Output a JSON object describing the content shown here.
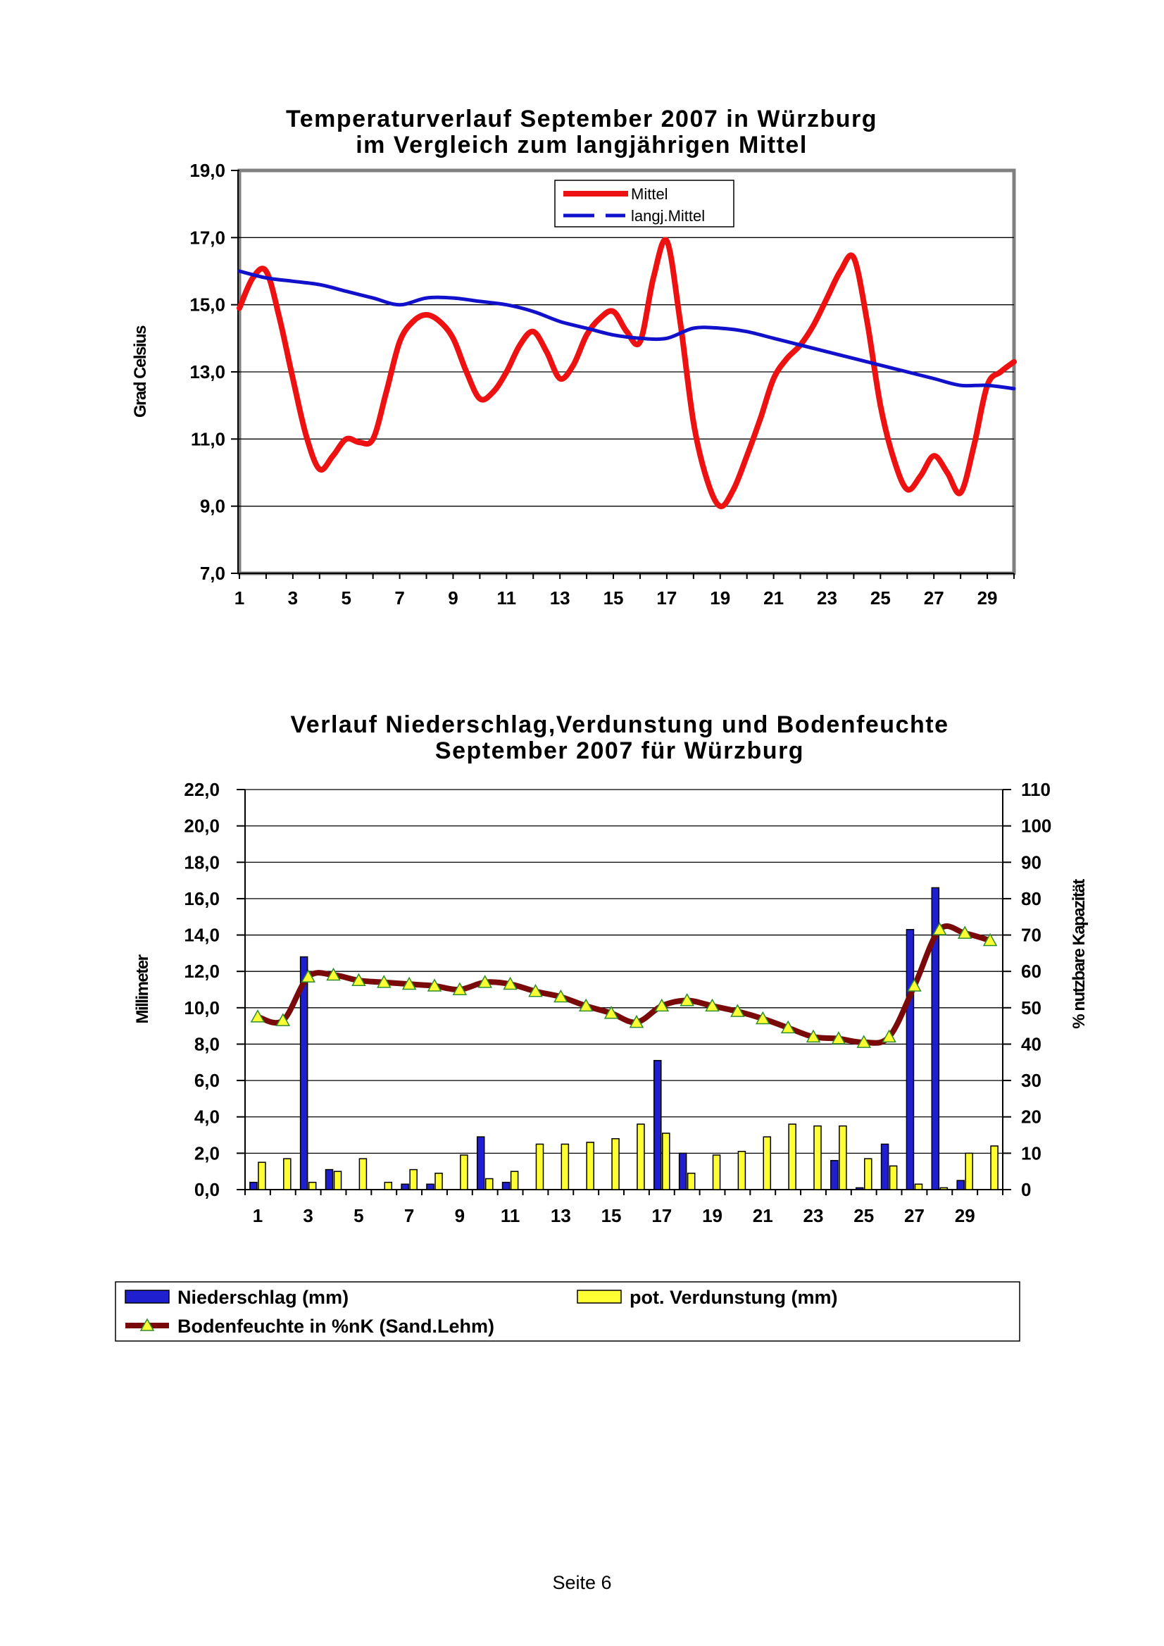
{
  "chart_data": [
    {
      "type": "line",
      "title": [
        "Temperaturverlauf September 2007 in Würzburg",
        "im Vergleich zum langjährigen Mittel"
      ],
      "ylabel": "Grad Celsius",
      "xlabel": "",
      "ylim": [
        7.0,
        19.0
      ],
      "yticks": [
        "7,0",
        "9,0",
        "11,0",
        "13,0",
        "15,0",
        "17,0",
        "19,0"
      ],
      "xlim": [
        1,
        30
      ],
      "xticks": [
        "1",
        "3",
        "5",
        "7",
        "9",
        "11",
        "13",
        "15",
        "17",
        "19",
        "21",
        "23",
        "25",
        "27",
        "29"
      ],
      "grid": true,
      "legend_position": "top-center",
      "series": [
        {
          "name": "Mittel",
          "color": "#ee1111",
          "x": [
            1,
            1.5,
            2,
            2.5,
            3,
            3.5,
            4,
            4.5,
            5,
            5.5,
            6,
            6.5,
            7,
            7.5,
            8,
            8.5,
            9,
            9.5,
            10,
            10.5,
            11,
            11.5,
            12,
            12.5,
            13,
            13.5,
            14,
            14.5,
            15,
            15.5,
            16,
            16.5,
            17,
            17.5,
            18,
            18.5,
            19,
            19.5,
            20,
            20.5,
            21,
            21.5,
            22,
            22.5,
            23,
            23.5,
            24,
            24.5,
            25,
            25.5,
            26,
            26.5,
            27,
            27.5,
            28,
            28.5,
            29,
            29.5,
            30
          ],
          "values": [
            14.9,
            15.8,
            16.0,
            14.6,
            12.8,
            11.1,
            10.1,
            10.5,
            11.0,
            10.9,
            11.0,
            12.4,
            13.9,
            14.5,
            14.7,
            14.5,
            14.0,
            13.0,
            12.2,
            12.4,
            13.0,
            13.8,
            14.2,
            13.6,
            12.8,
            13.2,
            14.1,
            14.6,
            14.8,
            14.2,
            13.9,
            15.8,
            16.9,
            14.5,
            11.5,
            9.8,
            9.0,
            9.5,
            10.5,
            11.6,
            12.8,
            13.4,
            13.8,
            14.4,
            15.2,
            16.0,
            16.4,
            14.5,
            12.0,
            10.4,
            9.5,
            9.9,
            10.5,
            10.0,
            9.4,
            10.8,
            12.6,
            13.0,
            13.3
          ]
        },
        {
          "name": "langj.Mittel",
          "color": "#1111cc",
          "x": [
            1,
            2,
            3,
            4,
            5,
            6,
            7,
            8,
            9,
            10,
            11,
            12,
            13,
            14,
            15,
            16,
            17,
            18,
            19,
            20,
            21,
            22,
            23,
            24,
            25,
            26,
            27,
            28,
            29,
            30
          ],
          "values": [
            16.0,
            15.8,
            15.7,
            15.6,
            15.4,
            15.2,
            15.0,
            15.2,
            15.2,
            15.1,
            15.0,
            14.8,
            14.5,
            14.3,
            14.1,
            14.0,
            14.0,
            14.3,
            14.3,
            14.2,
            14.0,
            13.8,
            13.6,
            13.4,
            13.2,
            13.0,
            12.8,
            12.6,
            12.6,
            12.5
          ]
        }
      ]
    },
    {
      "type": "bar",
      "title": [
        "Verlauf Niederschlag,Verdunstung und Bodenfeuchte",
        "September 2007 für Würzburg"
      ],
      "ylabel": "Millimeter",
      "y2label": "% nutzbare Kapazität",
      "ylim": [
        0,
        22
      ],
      "yticks": [
        "0,0",
        "2,0",
        "4,0",
        "6,0",
        "8,0",
        "10,0",
        "12,0",
        "14,0",
        "16,0",
        "18,0",
        "20,0",
        "22,0"
      ],
      "y2lim": [
        0,
        110
      ],
      "y2ticks": [
        "0",
        "10",
        "20",
        "30",
        "40",
        "50",
        "60",
        "70",
        "80",
        "90",
        "100",
        "110"
      ],
      "categories": [
        1,
        2,
        3,
        4,
        5,
        6,
        7,
        8,
        9,
        10,
        11,
        12,
        13,
        14,
        15,
        16,
        17,
        18,
        19,
        20,
        21,
        22,
        23,
        24,
        25,
        26,
        27,
        28,
        29,
        30
      ],
      "xticks": [
        "1",
        "3",
        "5",
        "7",
        "9",
        "11",
        "13",
        "15",
        "17",
        "19",
        "21",
        "23",
        "25",
        "27",
        "29"
      ],
      "grid": true,
      "legend_position": "bottom",
      "series": [
        {
          "name": "Niederschlag (mm)",
          "color": "#1f1fd0",
          "axis": "left",
          "values": [
            0.4,
            0.0,
            12.8,
            1.1,
            0.0,
            0.0,
            0.3,
            0.3,
            0.0,
            2.9,
            0.4,
            0.0,
            0.0,
            0.0,
            0.0,
            0.0,
            7.1,
            2.0,
            0.0,
            0.0,
            0.0,
            0.0,
            0.0,
            1.6,
            0.1,
            2.5,
            14.3,
            16.6,
            0.5,
            0.0
          ]
        },
        {
          "name": "pot. Verdunstung (mm)",
          "color": "#ffff33",
          "axis": "left",
          "values": [
            1.5,
            1.7,
            0.4,
            1.0,
            1.7,
            0.4,
            1.1,
            0.9,
            1.9,
            0.6,
            1.0,
            2.5,
            2.5,
            2.6,
            2.8,
            3.6,
            3.1,
            0.9,
            1.9,
            2.1,
            2.9,
            3.6,
            3.5,
            3.5,
            1.7,
            1.3,
            0.3,
            0.1,
            2.0,
            2.4
          ]
        },
        {
          "name": "Bodenfeuchte in %nK (Sand.Lehm)",
          "color": "#7a0a0a",
          "marker_color": "#ffff33",
          "axis": "right",
          "type": "line",
          "values": [
            47.5,
            46.5,
            58.5,
            59,
            57.5,
            57,
            56.5,
            56,
            55,
            57,
            56.5,
            54.5,
            53,
            50.5,
            48.5,
            46,
            50.5,
            52,
            50.5,
            49,
            47,
            44.5,
            42,
            41.5,
            40.5,
            42,
            56,
            71.5,
            70.5,
            68.5
          ]
        }
      ]
    }
  ],
  "footer": {
    "page_label": "Seite 6"
  }
}
